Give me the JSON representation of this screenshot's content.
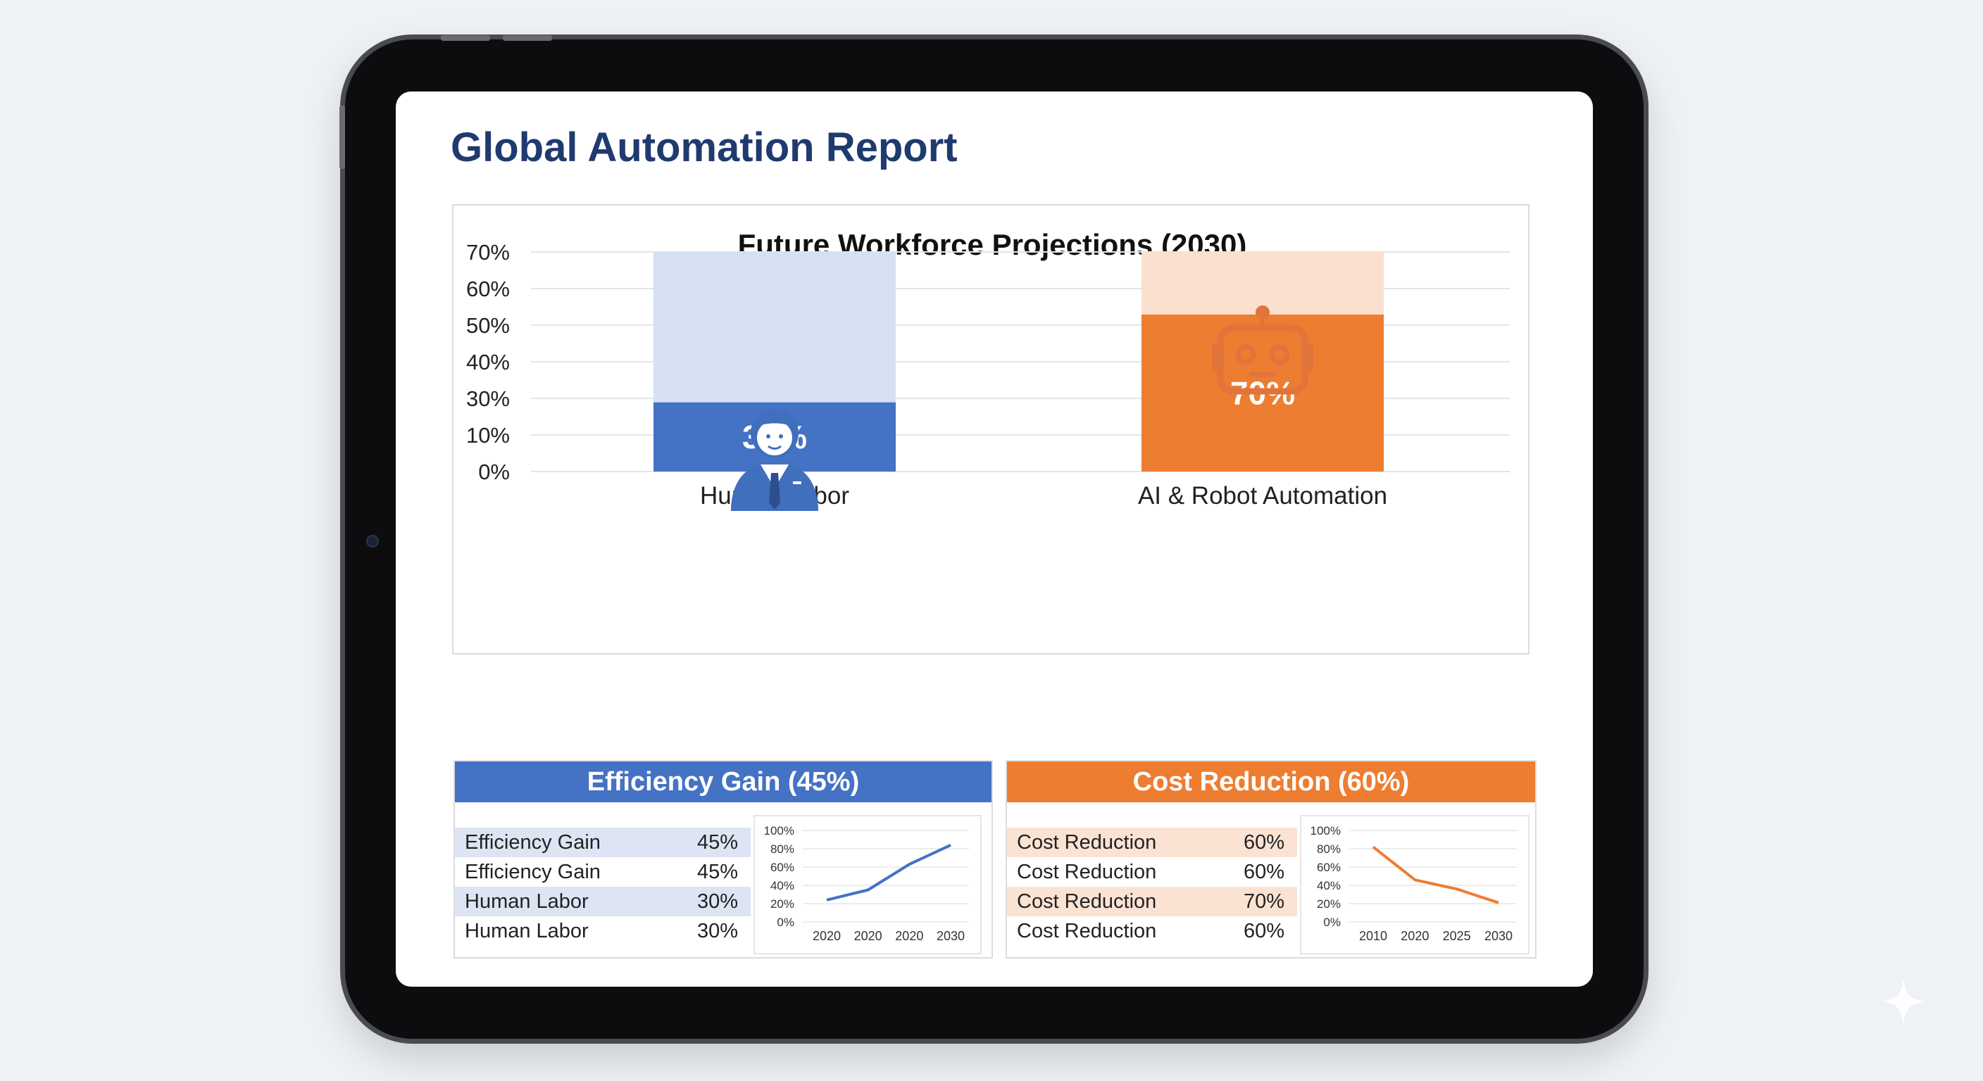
{
  "report": {
    "title": "Global Automation Report"
  },
  "colors": {
    "blue": "#4472c4",
    "blue_light": "#d6e0f3",
    "orange": "#ed7d31",
    "orange_light": "#fbe0cf",
    "title": "#1f3a6e"
  },
  "icons": {
    "human": "businessman-icon",
    "robot": "robot-icon"
  },
  "chart_data": [
    {
      "type": "bar",
      "title": "Future Workforce Projections (2030)",
      "categories": [
        "Human Labor",
        "AI & Robot Automation"
      ],
      "values": [
        30,
        70
      ],
      "data_labels": [
        "30%",
        "70%"
      ],
      "yticks": [
        "0%",
        "10%",
        "30%",
        "40%",
        "50%",
        "60%",
        "70%"
      ],
      "ylim": [
        0,
        70
      ],
      "grid": true
    },
    {
      "type": "line",
      "title": "Efficiency Gain (45%)",
      "x": [
        "2020",
        "2020",
        "2020",
        "2030"
      ],
      "values": [
        24,
        35,
        63,
        84
      ],
      "yticks": [
        "0%",
        "20%",
        "40%",
        "60%",
        "80%",
        "100%"
      ],
      "ylim": [
        0,
        100
      ],
      "color": "#4472c4",
      "table": [
        {
          "label": "Efficiency Gain",
          "value": "45%"
        },
        {
          "label": "Efficiency Gain",
          "value": "45%"
        },
        {
          "label": "Human Labor",
          "value": "30%"
        },
        {
          "label": "Human Labor",
          "value": "30%"
        }
      ]
    },
    {
      "type": "line",
      "title": "Cost Reduction (60%)",
      "x": [
        "2010",
        "2020",
        "2025",
        "2030"
      ],
      "values": [
        82,
        46,
        36,
        21
      ],
      "yticks": [
        "0%",
        "20%",
        "40%",
        "60%",
        "80%",
        "100%"
      ],
      "ylim": [
        0,
        100
      ],
      "color": "#ed7d31",
      "table": [
        {
          "label": "Cost Reduction",
          "value": "60%"
        },
        {
          "label": "Cost Reduction",
          "value": "60%"
        },
        {
          "label": "Cost Reduction",
          "value": "70%"
        },
        {
          "label": "Cost Reduction",
          "value": "60%"
        }
      ]
    }
  ]
}
